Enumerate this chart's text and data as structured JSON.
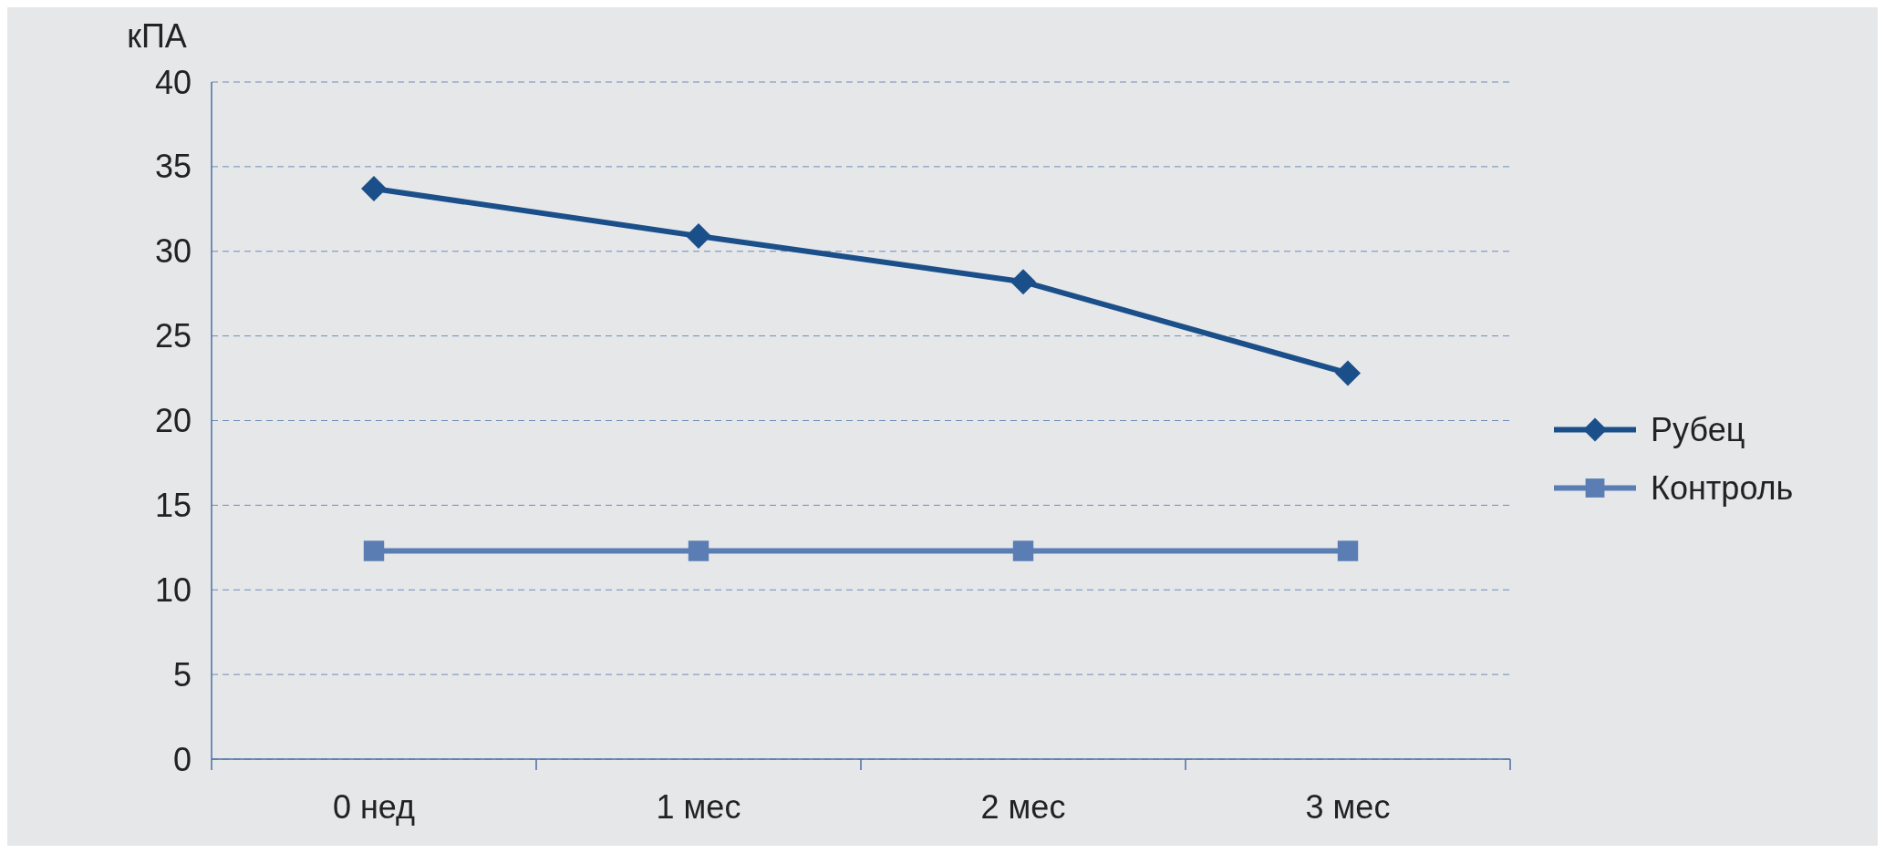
{
  "chart_data": {
    "type": "line",
    "ylabel": "кПА",
    "categories": [
      "0 нед",
      "1 мес",
      "2 мес",
      "3 мес"
    ],
    "series": [
      {
        "name": "Рубец",
        "color": "#1b4f8a",
        "values": [
          33.7,
          30.9,
          28.2,
          22.8
        ],
        "marker": "diamond"
      },
      {
        "name": "Контроль",
        "color": "#5a7db3",
        "values": [
          12.3,
          12.3,
          12.3,
          12.3
        ],
        "marker": "square"
      }
    ],
    "ylim": [
      0,
      40
    ],
    "yticks": [
      0,
      5,
      10,
      15,
      20,
      25,
      30,
      35,
      40
    ],
    "grid": "y",
    "legend": "right"
  }
}
